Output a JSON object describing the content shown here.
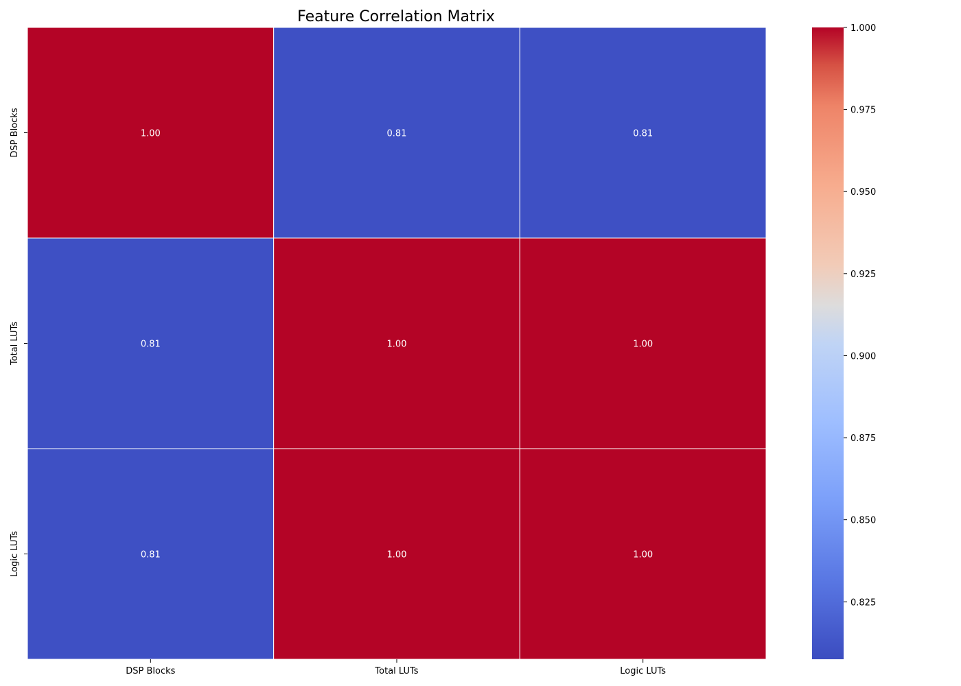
{
  "chart_data": {
    "type": "heatmap",
    "title": "Feature Correlation Matrix",
    "x_categories": [
      "DSP Blocks",
      "Total LUTs",
      "Logic LUTs"
    ],
    "y_categories": [
      "DSP Blocks",
      "Total LUTs",
      "Logic LUTs"
    ],
    "values": [
      [
        1.0,
        0.81,
        0.81
      ],
      [
        0.81,
        1.0,
        1.0
      ],
      [
        0.81,
        1.0,
        1.0
      ]
    ],
    "cell_labels": [
      [
        "1.00",
        "0.81",
        "0.81"
      ],
      [
        "0.81",
        "1.00",
        "1.00"
      ],
      [
        "0.81",
        "1.00",
        "1.00"
      ]
    ],
    "colormap": "coolwarm",
    "color_low": "#3b4cc0",
    "color_high": "#b40426",
    "colorbar": {
      "range": [
        0.8075,
        1.0
      ],
      "ticks": [
        0.825,
        0.85,
        0.875,
        0.9,
        0.925,
        0.95,
        0.975,
        1.0
      ],
      "tick_labels": [
        "0.825",
        "0.850",
        "0.875",
        "0.900",
        "0.925",
        "0.950",
        "0.975",
        "1.000"
      ],
      "placement": "right"
    },
    "grid": false,
    "legend": false
  }
}
